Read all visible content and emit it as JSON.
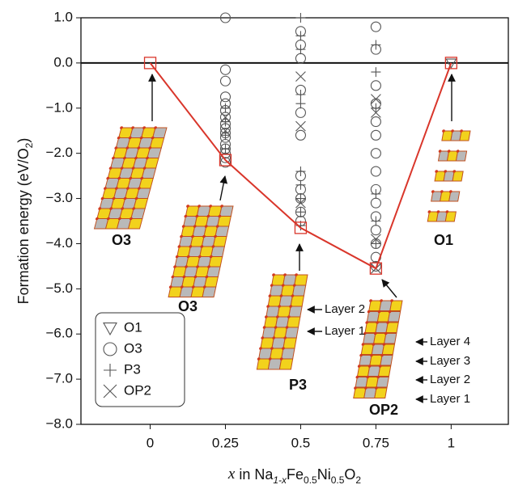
{
  "chart_data": {
    "type": "scatter",
    "y_label": [
      "Formation energy (eV/O",
      "2",
      ")"
    ],
    "x_label": [
      "x",
      " in Na",
      "1-x",
      "Fe",
      "0.5",
      "Ni",
      "0.5",
      "O",
      "2"
    ],
    "xlim": [
      -0.23,
      1.19
    ],
    "ylim": [
      -8,
      1
    ],
    "xticks": [
      0,
      0.25,
      0.5,
      0.75,
      1
    ],
    "yticks": [
      {
        "value": 1,
        "label": "1.0"
      },
      {
        "value": 0,
        "label": "0.0"
      },
      {
        "value": -1,
        "label": "−1.0"
      },
      {
        "value": -2,
        "label": "−2.0"
      },
      {
        "value": -3,
        "label": "−3.0"
      },
      {
        "value": -4,
        "label": "−4.0"
      },
      {
        "value": -5,
        "label": "−5.0"
      },
      {
        "value": -6,
        "label": "−6.0"
      },
      {
        "value": -7,
        "label": "−7.0"
      },
      {
        "value": -8,
        "label": "−8.0"
      }
    ],
    "reference_line": 0,
    "legend_loc": "lower left",
    "hull": {
      "color": "#d9362b",
      "x": [
        0,
        0.25,
        0.5,
        0.75,
        1
      ],
      "values": [
        0,
        -2.15,
        -3.65,
        -4.55,
        0
      ]
    },
    "series": [
      {
        "name": "O1",
        "marker": "triangle",
        "color": "#555555",
        "x": [
          1
        ],
        "values": [
          0
        ]
      },
      {
        "name": "O3",
        "marker": "circle",
        "color": "#555555",
        "x": [
          0.25,
          0.25,
          0.25,
          0.25,
          0.25,
          0.25,
          0.25,
          0.25,
          0.25,
          0.25,
          0.25,
          0.25,
          0.25,
          0.25,
          0.25,
          0.25,
          0.5,
          0.5,
          0.5,
          0.5,
          0.5,
          0.5,
          0.5,
          0.5,
          0.5,
          0.5,
          0.5,
          0.75,
          0.75,
          0.75,
          0.75,
          0.75,
          0.75,
          0.75,
          0.75,
          0.75,
          0.75,
          0.75,
          0.75,
          0.75,
          0.75,
          0.75
        ],
        "values": [
          1.0,
          -0.15,
          -0.4,
          -0.75,
          -0.9,
          -1.05,
          -1.2,
          -1.35,
          -1.45,
          -1.55,
          -1.65,
          -1.8,
          -1.9,
          -2.0,
          -2.1,
          -2.2,
          0.7,
          0.4,
          0.1,
          -0.6,
          -1.1,
          -1.6,
          -2.5,
          -2.8,
          -3.0,
          -3.3,
          -3.5,
          0.8,
          0.3,
          -0.5,
          -0.9,
          -1.3,
          -1.6,
          -2.0,
          -2.4,
          -2.8,
          -3.1,
          -3.4,
          -3.7,
          -4.0,
          -4.3,
          -4.5
        ]
      },
      {
        "name": "P3",
        "marker": "plus",
        "color": "#555555",
        "x": [
          0.25,
          0.25,
          0.25,
          0.25,
          0.5,
          0.5,
          0.5,
          0.5,
          0.5,
          0.5,
          0.5,
          0.5,
          0.5,
          0.5,
          0.75,
          0.75,
          0.75,
          0.75,
          0.75,
          0.75
        ],
        "values": [
          -1.0,
          -1.3,
          -1.6,
          -1.9,
          1.0,
          0.6,
          0.3,
          -0.7,
          -0.9,
          -2.4,
          -2.7,
          -3.0,
          -3.3,
          -3.6,
          0.4,
          -0.2,
          -1.0,
          -2.9,
          -3.5,
          -4.0
        ]
      },
      {
        "name": "OP2",
        "marker": "cross",
        "color": "#555555",
        "x": [
          0.25,
          0.25,
          0.5,
          0.5,
          0.5,
          0.75,
          0.75,
          0.75,
          0.75
        ],
        "values": [
          -1.2,
          -1.5,
          -0.3,
          -1.4,
          -3.1,
          -0.8,
          -1.1,
          -3.9,
          -4.55
        ]
      }
    ],
    "annotations": [
      "O3",
      "O3",
      "P3",
      "OP2",
      "O1",
      "Layer 2",
      "Layer 1",
      "Layer 4",
      "Layer 3",
      "Layer 2",
      "Layer 1"
    ]
  }
}
